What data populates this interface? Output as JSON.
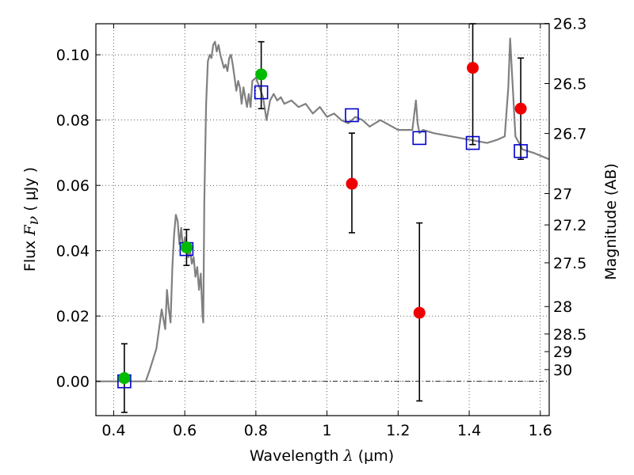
{
  "chart_data": {
    "type": "scatter",
    "xlabel": "Wavelength  λ (μm)",
    "xlabel_parts": {
      "pre": "Wavelength  ",
      "sym": "λ",
      "post": " (μm)"
    },
    "ylabel_parts": {
      "pre": "Flux  ",
      "sym": "F",
      "sub": "ν",
      "post": "  ( μJy )"
    },
    "ylabel_right": "Magnitude (AB)",
    "xlim": [
      0.35,
      1.625
    ],
    "ylim": [
      -0.0105,
      0.1095
    ],
    "grid": true,
    "grid_style": "dotted",
    "zero_line": true,
    "x_ticks": [
      {
        "v": 0.4,
        "label": "0.4"
      },
      {
        "v": 0.6,
        "label": "0.6"
      },
      {
        "v": 0.8,
        "label": "0.8"
      },
      {
        "v": 1.0,
        "label": "1"
      },
      {
        "v": 1.2,
        "label": "1.2"
      },
      {
        "v": 1.4,
        "label": "1.4"
      },
      {
        "v": 1.6,
        "label": "1.6"
      }
    ],
    "y_ticks": [
      {
        "v": 0.0,
        "label": "0.00"
      },
      {
        "v": 0.02,
        "label": "0.02"
      },
      {
        "v": 0.04,
        "label": "0.04"
      },
      {
        "v": 0.06,
        "label": "0.06"
      },
      {
        "v": 0.08,
        "label": "0.08"
      },
      {
        "v": 0.1,
        "label": "0.10"
      }
    ],
    "mag_ticks": [
      {
        "label": "26.3",
        "flux": 0.1096
      },
      {
        "label": "26.5",
        "flux": 0.0912
      },
      {
        "label": "26.7",
        "flux": 0.0759
      },
      {
        "label": "27",
        "flux": 0.0575
      },
      {
        "label": "27.2",
        "flux": 0.0479
      },
      {
        "label": "27.5",
        "flux": 0.0363
      },
      {
        "label": "28",
        "flux": 0.0229
      },
      {
        "label": "28.5",
        "flux": 0.0145
      },
      {
        "label": "29",
        "flux": 0.0091
      },
      {
        "label": "30",
        "flux": 0.0036
      }
    ],
    "model_spectrum": {
      "name": "model",
      "color": "#808080",
      "x": [
        0.35,
        0.48,
        0.49,
        0.5,
        0.52,
        0.53,
        0.535,
        0.545,
        0.55,
        0.555,
        0.56,
        0.565,
        0.57,
        0.575,
        0.58,
        0.585,
        0.59,
        0.595,
        0.6,
        0.605,
        0.61,
        0.615,
        0.62,
        0.625,
        0.63,
        0.635,
        0.64,
        0.645,
        0.65,
        0.652,
        0.655,
        0.66,
        0.665,
        0.67,
        0.675,
        0.68,
        0.685,
        0.69,
        0.695,
        0.7,
        0.705,
        0.71,
        0.715,
        0.72,
        0.725,
        0.73,
        0.735,
        0.74,
        0.745,
        0.75,
        0.755,
        0.76,
        0.765,
        0.77,
        0.775,
        0.78,
        0.785,
        0.79,
        0.8,
        0.81,
        0.82,
        0.83,
        0.84,
        0.85,
        0.86,
        0.87,
        0.88,
        0.9,
        0.92,
        0.94,
        0.96,
        0.98,
        1.0,
        1.02,
        1.04,
        1.06,
        1.08,
        1.1,
        1.12,
        1.15,
        1.2,
        1.24,
        1.25,
        1.255,
        1.26,
        1.27,
        1.3,
        1.35,
        1.4,
        1.45,
        1.48,
        1.5,
        1.51,
        1.515,
        1.52,
        1.53,
        1.55,
        1.58,
        1.625
      ],
      "y": [
        0.0,
        0.0,
        0.0,
        0.003,
        0.01,
        0.018,
        0.022,
        0.016,
        0.028,
        0.022,
        0.018,
        0.035,
        0.045,
        0.051,
        0.049,
        0.042,
        0.047,
        0.04,
        0.044,
        0.041,
        0.038,
        0.04,
        0.036,
        0.038,
        0.032,
        0.035,
        0.028,
        0.033,
        0.02,
        0.018,
        0.055,
        0.085,
        0.098,
        0.1,
        0.099,
        0.103,
        0.104,
        0.101,
        0.103,
        0.1,
        0.098,
        0.096,
        0.097,
        0.095,
        0.099,
        0.1,
        0.097,
        0.093,
        0.089,
        0.092,
        0.09,
        0.085,
        0.09,
        0.087,
        0.084,
        0.088,
        0.084,
        0.092,
        0.093,
        0.09,
        0.087,
        0.08,
        0.086,
        0.088,
        0.086,
        0.087,
        0.085,
        0.086,
        0.084,
        0.085,
        0.082,
        0.084,
        0.081,
        0.082,
        0.08,
        0.079,
        0.081,
        0.08,
        0.078,
        0.08,
        0.077,
        0.077,
        0.086,
        0.079,
        0.076,
        0.077,
        0.076,
        0.075,
        0.074,
        0.073,
        0.074,
        0.075,
        0.09,
        0.105,
        0.095,
        0.075,
        0.071,
        0.07,
        0.068
      ]
    },
    "green_points": {
      "color": "#00bb00",
      "points": [
        {
          "x": 0.43,
          "y": 0.001
        },
        {
          "x": 0.605,
          "y": 0.041
        },
        {
          "x": 0.815,
          "y": 0.094
        }
      ]
    },
    "red_points": {
      "color": "#ee0000",
      "points": [
        {
          "x": 1.07,
          "y": 0.0605
        },
        {
          "x": 1.26,
          "y": 0.021
        },
        {
          "x": 1.41,
          "y": 0.096
        },
        {
          "x": 1.545,
          "y": 0.0835
        }
      ]
    },
    "model_photometry": {
      "color": "#0000cc",
      "points": [
        {
          "x": 0.43,
          "y": 0.0
        },
        {
          "x": 0.605,
          "y": 0.0405
        },
        {
          "x": 0.815,
          "y": 0.0885
        },
        {
          "x": 1.07,
          "y": 0.0815
        },
        {
          "x": 1.26,
          "y": 0.0745
        },
        {
          "x": 1.41,
          "y": 0.073
        },
        {
          "x": 1.545,
          "y": 0.0705
        }
      ]
    },
    "error_bars": [
      {
        "x": 0.43,
        "lo": -0.0095,
        "hi": 0.0115
      },
      {
        "x": 0.605,
        "lo": 0.0355,
        "hi": 0.0465
      },
      {
        "x": 0.815,
        "lo": 0.0835,
        "hi": 0.104
      },
      {
        "x": 1.07,
        "lo": 0.0455,
        "hi": 0.076
      },
      {
        "x": 1.26,
        "lo": -0.006,
        "hi": 0.0485
      },
      {
        "x": 1.41,
        "lo": 0.0725,
        "hi": 0.1095
      },
      {
        "x": 1.545,
        "lo": 0.068,
        "hi": 0.099
      }
    ]
  }
}
